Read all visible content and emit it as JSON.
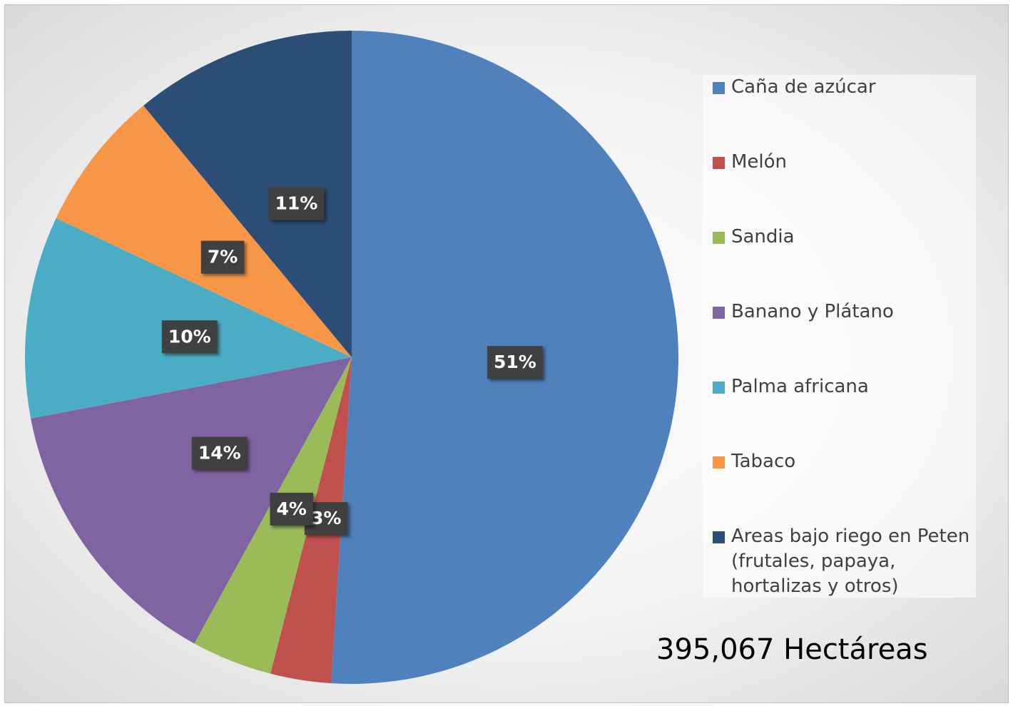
{
  "chart_data": {
    "type": "pie",
    "categories": [
      "Caña de azúcar",
      "Melón",
      "Sandia",
      "Banano y Plátano",
      "Palma africana",
      "Tabaco",
      "Areas bajo riego en Peten (frutales, papaya, hortalizas y otros)"
    ],
    "values": [
      51,
      3,
      4,
      14,
      10,
      7,
      11
    ],
    "value_labels": [
      "51%",
      "3%",
      "4%",
      "14%",
      "10%",
      "7%",
      "11%"
    ],
    "colors": [
      "#4f81bd",
      "#c0504d",
      "#9bbb59",
      "#8064a2",
      "#4bacc6",
      "#f79646",
      "#2c4d75"
    ],
    "legend": "right",
    "annotation": "395,067 Hectáreas"
  }
}
